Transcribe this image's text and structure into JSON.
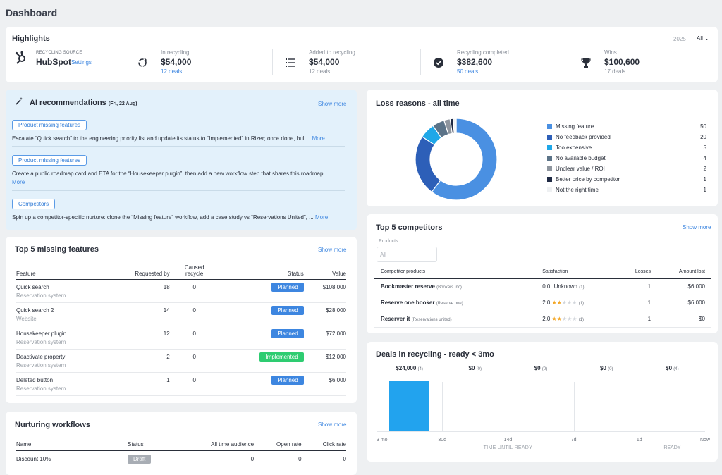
{
  "page_title": "Dashboard",
  "highlights": {
    "title": "Highlights",
    "year": "2025",
    "filter": "All",
    "source_label": "RECYCLING SOURCE",
    "source_name": "HubSpot",
    "settings": "Settings",
    "stats": [
      {
        "label": "In recycling",
        "value": "$54,000",
        "count": "12 deals"
      },
      {
        "label": "Added to recycling",
        "value": "$54,000",
        "count": "12 deals"
      },
      {
        "label": "Recycling completed",
        "value": "$382,600",
        "count": "50 deals"
      },
      {
        "label": "Wins",
        "value": "$100,600",
        "count": "17 deals"
      }
    ]
  },
  "ai": {
    "title": "AI recommendations",
    "date": "(Fri, 22 Aug)",
    "show_more": "Show more",
    "items": [
      {
        "tag": "Product missing features",
        "text": "Escalate “Quick search” to the engineering priority list and update its status to “Implemented” in Rizer; once done, bul ...",
        "more": "More"
      },
      {
        "tag": "Product missing features",
        "text": "Create a public roadmap card and ETA for the “Housekeeper plugin”, then add a new workflow step that shares this roadmap ...",
        "more": "More"
      },
      {
        "tag": "Competitors",
        "text": "Spin up a competitor-specific nurture: clone the “Missing feature” workflow, add a case study vs “Reservations United”, ...",
        "more": "More"
      }
    ]
  },
  "missing": {
    "title": "Top 5 missing features",
    "show_more": "Show more",
    "headers": {
      "feature": "Feature",
      "requested": "Requested by",
      "caused1": "Caused",
      "caused2": "recycle",
      "status": "Status",
      "value": "Value"
    },
    "rows": [
      {
        "name": "Quick search",
        "sub": "Reservation system",
        "req": "18",
        "caused": "0",
        "status": "Planned",
        "value": "$108,000"
      },
      {
        "name": "Quick search 2",
        "sub": "Website",
        "req": "14",
        "caused": "0",
        "status": "Planned",
        "value": "$28,000"
      },
      {
        "name": "Housekeeper plugin",
        "sub": "Reservation system",
        "req": "12",
        "caused": "0",
        "status": "Planned",
        "value": "$72,000"
      },
      {
        "name": "Deactivate property",
        "sub": "Reservation system",
        "req": "2",
        "caused": "0",
        "status": "Implemented",
        "value": "$12,000"
      },
      {
        "name": "Deleted button",
        "sub": "Reservation system",
        "req": "1",
        "caused": "0",
        "status": "Planned",
        "value": "$6,000"
      }
    ]
  },
  "nurturing": {
    "title": "Nurturing workflows",
    "show_more": "Show more",
    "headers": {
      "name": "Name",
      "status": "Status",
      "audience": "All time audience",
      "open": "Open rate",
      "click": "Click rate"
    },
    "rows": [
      {
        "name": "Discount 10%",
        "status": "Draft",
        "audience": "0",
        "open": "0",
        "click": "0"
      }
    ]
  },
  "loss": {
    "title": "Loss reasons - all time",
    "items": [
      {
        "label": "Missing feature",
        "count": "50",
        "color": "#4a90e2"
      },
      {
        "label": "No feedback provided",
        "count": "20",
        "color": "#2d5fb8"
      },
      {
        "label": "Too expensive",
        "count": "5",
        "color": "#1ea7e8"
      },
      {
        "label": "No available budget",
        "count": "4",
        "color": "#5b7388"
      },
      {
        "label": "Unclear value / ROI",
        "count": "2",
        "color": "#8e959e"
      },
      {
        "label": "Better price by competitor",
        "count": "1",
        "color": "#1f2a44"
      },
      {
        "label": "Not the right time",
        "count": "1",
        "color": "#eef0f2"
      }
    ]
  },
  "chart_data": [
    {
      "type": "pie",
      "title": "Loss reasons - all time",
      "categories": [
        "Missing feature",
        "No feedback provided",
        "Too expensive",
        "No available budget",
        "Unclear value / ROI",
        "Better price by competitor",
        "Not the right time"
      ],
      "values": [
        50,
        20,
        5,
        4,
        2,
        1,
        1
      ]
    },
    {
      "type": "bar",
      "title": "Deals in recycling - ready < 3mo",
      "categories": [
        "3 mo - 30d",
        "30d - 14d",
        "14d - 7d",
        "7d - 1d",
        "1d - Now"
      ],
      "values": [
        24000,
        0,
        0,
        0,
        0
      ],
      "counts": [
        4,
        0,
        0,
        0,
        4
      ],
      "xlabel": "TIME UNTIL READY",
      "ylabel": ""
    }
  ],
  "competitors": {
    "title": "Top 5 competitors",
    "show_more": "Show more",
    "products_label": "Products",
    "products_placeholder": "All",
    "headers": {
      "product": "Competitor products",
      "satisfaction": "Satisfaction",
      "losses": "Losses",
      "amount": "Amount lost"
    },
    "rows": [
      {
        "name": "Bookmaster reserve",
        "company": "(Bookers Inc)",
        "score": "0.0",
        "unknown": "Unknown",
        "rating": 0,
        "reviews": "(1)",
        "losses": "1",
        "amount": "$6,000"
      },
      {
        "name": "Reserve one booker",
        "company": "(Reserve one)",
        "score": "2.0",
        "unknown": "",
        "rating": 2,
        "reviews": "(1)",
        "losses": "1",
        "amount": "$6,000"
      },
      {
        "name": "Reserver it",
        "company": "(Reservations united)",
        "score": "2.0",
        "unknown": "",
        "rating": 2,
        "reviews": "(1)",
        "losses": "1",
        "amount": "$0"
      }
    ]
  },
  "deals": {
    "title": "Deals in recycling - ready < 3mo",
    "bars": [
      {
        "amount": "$24,000",
        "count": "(4)"
      },
      {
        "amount": "$0",
        "count": "(0)"
      },
      {
        "amount": "$0",
        "count": "(0)"
      },
      {
        "amount": "$0",
        "count": "(0)"
      },
      {
        "amount": "$0",
        "count": "(4)"
      }
    ],
    "ticks": [
      "3 mo",
      "30d",
      "14d",
      "7d",
      "1d",
      "Now"
    ],
    "axis_label": "TIME UNTIL READY",
    "ready_label": "READY",
    "bar_color": "#22a3ee"
  }
}
